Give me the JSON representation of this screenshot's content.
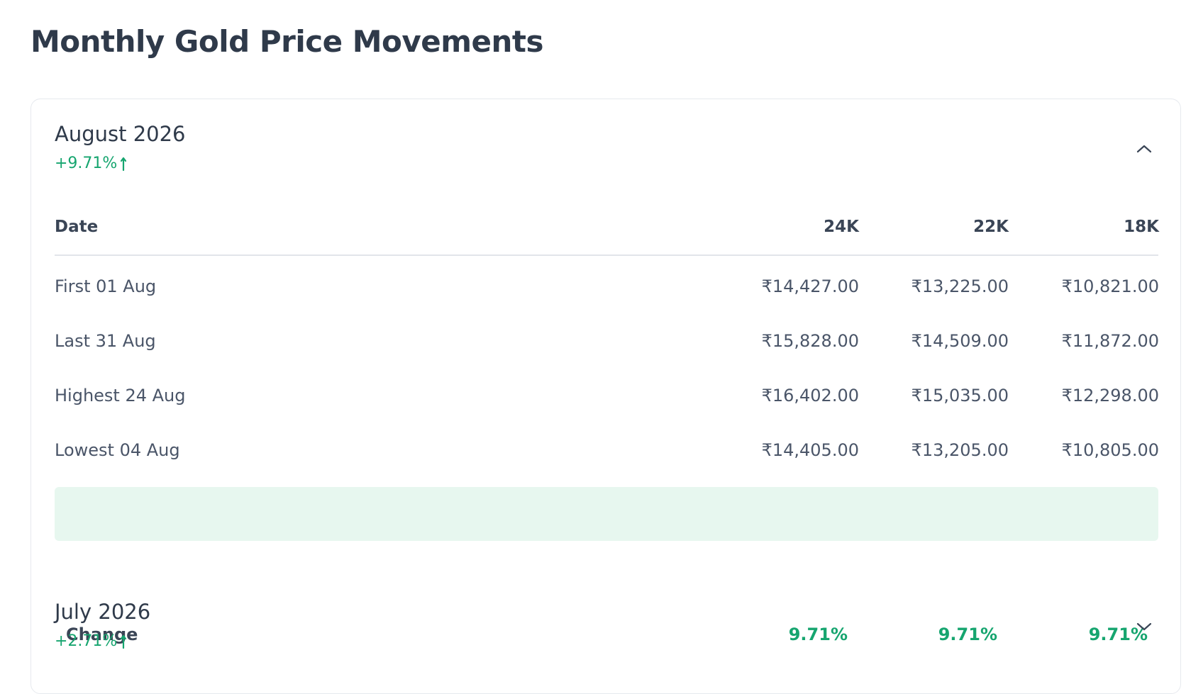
{
  "header": {
    "title": "Monthly Gold Price Movements"
  },
  "sections": [
    {
      "month": "August 2026",
      "change": "+9.71%",
      "expanded": true,
      "table": {
        "columns": [
          "Date",
          "24K",
          "22K",
          "18K"
        ],
        "rows": [
          [
            "First 01 Aug",
            "₹14,427.00",
            "₹13,225.00",
            "₹10,821.00"
          ],
          [
            "Last 31 Aug",
            "₹15,828.00",
            "₹14,509.00",
            "₹11,872.00"
          ],
          [
            "Highest 24 Aug",
            "₹16,402.00",
            "₹15,035.00",
            "₹12,298.00"
          ],
          [
            "Lowest 04 Aug",
            "₹14,405.00",
            "₹13,205.00",
            "₹10,805.00"
          ]
        ],
        "summary": [
          "Change",
          "9.71%",
          "9.71%",
          "9.71%"
        ]
      }
    },
    {
      "month": "July 2026",
      "change": "+2.71%",
      "expanded": false
    }
  ]
}
